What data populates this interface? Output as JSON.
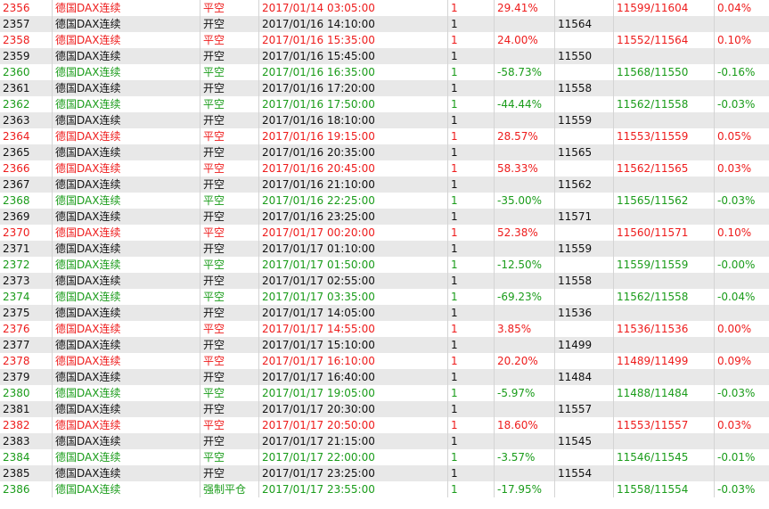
{
  "colors": {
    "loss": "#ee1c1c",
    "gain": "#1a9c1a",
    "neutral": "#111111",
    "alt_row_bg": "#e8e8e8"
  },
  "rows": [
    {
      "id": "2356",
      "instrument": "德国DAX连续",
      "action": "平空",
      "time": "2017/01/14 03:05:00",
      "qty": "1",
      "pct": "29.41%",
      "price": "",
      "pair": "11599/11604",
      "ret": "0.04%",
      "color": "red"
    },
    {
      "id": "2357",
      "instrument": "德国DAX连续",
      "action": "开空",
      "time": "2017/01/16 14:10:00",
      "qty": "1",
      "pct": "",
      "price": "11564",
      "pair": "",
      "ret": "",
      "color": "black"
    },
    {
      "id": "2358",
      "instrument": "德国DAX连续",
      "action": "平空",
      "time": "2017/01/16 15:35:00",
      "qty": "1",
      "pct": "24.00%",
      "price": "",
      "pair": "11552/11564",
      "ret": "0.10%",
      "color": "red"
    },
    {
      "id": "2359",
      "instrument": "德国DAX连续",
      "action": "开空",
      "time": "2017/01/16 15:45:00",
      "qty": "1",
      "pct": "",
      "price": "11550",
      "pair": "",
      "ret": "",
      "color": "black"
    },
    {
      "id": "2360",
      "instrument": "德国DAX连续",
      "action": "平空",
      "time": "2017/01/16 16:35:00",
      "qty": "1",
      "pct": "-58.73%",
      "price": "",
      "pair": "11568/11550",
      "ret": "-0.16%",
      "color": "green"
    },
    {
      "id": "2361",
      "instrument": "德国DAX连续",
      "action": "开空",
      "time": "2017/01/16 17:20:00",
      "qty": "1",
      "pct": "",
      "price": "11558",
      "pair": "",
      "ret": "",
      "color": "black"
    },
    {
      "id": "2362",
      "instrument": "德国DAX连续",
      "action": "平空",
      "time": "2017/01/16 17:50:00",
      "qty": "1",
      "pct": "-44.44%",
      "price": "",
      "pair": "11562/11558",
      "ret": "-0.03%",
      "color": "green"
    },
    {
      "id": "2363",
      "instrument": "德国DAX连续",
      "action": "开空",
      "time": "2017/01/16 18:10:00",
      "qty": "1",
      "pct": "",
      "price": "11559",
      "pair": "",
      "ret": "",
      "color": "black"
    },
    {
      "id": "2364",
      "instrument": "德国DAX连续",
      "action": "平空",
      "time": "2017/01/16 19:15:00",
      "qty": "1",
      "pct": "28.57%",
      "price": "",
      "pair": "11553/11559",
      "ret": "0.05%",
      "color": "red"
    },
    {
      "id": "2365",
      "instrument": "德国DAX连续",
      "action": "开空",
      "time": "2017/01/16 20:35:00",
      "qty": "1",
      "pct": "",
      "price": "11565",
      "pair": "",
      "ret": "",
      "color": "black"
    },
    {
      "id": "2366",
      "instrument": "德国DAX连续",
      "action": "平空",
      "time": "2017/01/16 20:45:00",
      "qty": "1",
      "pct": "58.33%",
      "price": "",
      "pair": "11562/11565",
      "ret": "0.03%",
      "color": "red"
    },
    {
      "id": "2367",
      "instrument": "德国DAX连续",
      "action": "开空",
      "time": "2017/01/16 21:10:00",
      "qty": "1",
      "pct": "",
      "price": "11562",
      "pair": "",
      "ret": "",
      "color": "black"
    },
    {
      "id": "2368",
      "instrument": "德国DAX连续",
      "action": "平空",
      "time": "2017/01/16 22:25:00",
      "qty": "1",
      "pct": "-35.00%",
      "price": "",
      "pair": "11565/11562",
      "ret": "-0.03%",
      "color": "green"
    },
    {
      "id": "2369",
      "instrument": "德国DAX连续",
      "action": "开空",
      "time": "2017/01/16 23:25:00",
      "qty": "1",
      "pct": "",
      "price": "11571",
      "pair": "",
      "ret": "",
      "color": "black"
    },
    {
      "id": "2370",
      "instrument": "德国DAX连续",
      "action": "平空",
      "time": "2017/01/17 00:20:00",
      "qty": "1",
      "pct": "52.38%",
      "price": "",
      "pair": "11560/11571",
      "ret": "0.10%",
      "color": "red"
    },
    {
      "id": "2371",
      "instrument": "德国DAX连续",
      "action": "开空",
      "time": "2017/01/17 01:10:00",
      "qty": "1",
      "pct": "",
      "price": "11559",
      "pair": "",
      "ret": "",
      "color": "black"
    },
    {
      "id": "2372",
      "instrument": "德国DAX连续",
      "action": "平空",
      "time": "2017/01/17 01:50:00",
      "qty": "1",
      "pct": "-12.50%",
      "price": "",
      "pair": "11559/11559",
      "ret": "-0.00%",
      "color": "green"
    },
    {
      "id": "2373",
      "instrument": "德国DAX连续",
      "action": "开空",
      "time": "2017/01/17 02:55:00",
      "qty": "1",
      "pct": "",
      "price": "11558",
      "pair": "",
      "ret": "",
      "color": "black"
    },
    {
      "id": "2374",
      "instrument": "德国DAX连续",
      "action": "平空",
      "time": "2017/01/17 03:35:00",
      "qty": "1",
      "pct": "-69.23%",
      "price": "",
      "pair": "11562/11558",
      "ret": "-0.04%",
      "color": "green"
    },
    {
      "id": "2375",
      "instrument": "德国DAX连续",
      "action": "开空",
      "time": "2017/01/17 14:05:00",
      "qty": "1",
      "pct": "",
      "price": "11536",
      "pair": "",
      "ret": "",
      "color": "black"
    },
    {
      "id": "2376",
      "instrument": "德国DAX连续",
      "action": "平空",
      "time": "2017/01/17 14:55:00",
      "qty": "1",
      "pct": "3.85%",
      "price": "",
      "pair": "11536/11536",
      "ret": "0.00%",
      "color": "red"
    },
    {
      "id": "2377",
      "instrument": "德国DAX连续",
      "action": "开空",
      "time": "2017/01/17 15:10:00",
      "qty": "1",
      "pct": "",
      "price": "11499",
      "pair": "",
      "ret": "",
      "color": "black"
    },
    {
      "id": "2378",
      "instrument": "德国DAX连续",
      "action": "平空",
      "time": "2017/01/17 16:10:00",
      "qty": "1",
      "pct": "20.20%",
      "price": "",
      "pair": "11489/11499",
      "ret": "0.09%",
      "color": "red"
    },
    {
      "id": "2379",
      "instrument": "德国DAX连续",
      "action": "开空",
      "time": "2017/01/17 16:40:00",
      "qty": "1",
      "pct": "",
      "price": "11484",
      "pair": "",
      "ret": "",
      "color": "black"
    },
    {
      "id": "2380",
      "instrument": "德国DAX连续",
      "action": "平空",
      "time": "2017/01/17 19:05:00",
      "qty": "1",
      "pct": "-5.97%",
      "price": "",
      "pair": "11488/11484",
      "ret": "-0.03%",
      "color": "green"
    },
    {
      "id": "2381",
      "instrument": "德国DAX连续",
      "action": "开空",
      "time": "2017/01/17 20:30:00",
      "qty": "1",
      "pct": "",
      "price": "11557",
      "pair": "",
      "ret": "",
      "color": "black"
    },
    {
      "id": "2382",
      "instrument": "德国DAX连续",
      "action": "平空",
      "time": "2017/01/17 20:50:00",
      "qty": "1",
      "pct": "18.60%",
      "price": "",
      "pair": "11553/11557",
      "ret": "0.03%",
      "color": "red"
    },
    {
      "id": "2383",
      "instrument": "德国DAX连续",
      "action": "开空",
      "time": "2017/01/17 21:15:00",
      "qty": "1",
      "pct": "",
      "price": "11545",
      "pair": "",
      "ret": "",
      "color": "black"
    },
    {
      "id": "2384",
      "instrument": "德国DAX连续",
      "action": "平空",
      "time": "2017/01/17 22:00:00",
      "qty": "1",
      "pct": "-3.57%",
      "price": "",
      "pair": "11546/11545",
      "ret": "-0.01%",
      "color": "green"
    },
    {
      "id": "2385",
      "instrument": "德国DAX连续",
      "action": "开空",
      "time": "2017/01/17 23:25:00",
      "qty": "1",
      "pct": "",
      "price": "11554",
      "pair": "",
      "ret": "",
      "color": "black"
    },
    {
      "id": "2386",
      "instrument": "德国DAX连续",
      "action": "强制平仓",
      "time": "2017/01/17 23:55:00",
      "qty": "1",
      "pct": "-17.95%",
      "price": "",
      "pair": "11558/11554",
      "ret": "-0.03%",
      "color": "green"
    }
  ]
}
